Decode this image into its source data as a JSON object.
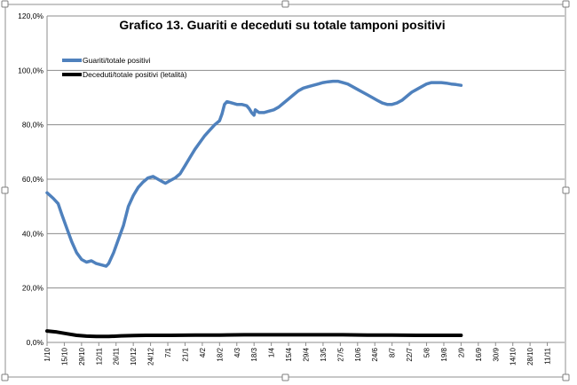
{
  "chart_data": {
    "type": "line",
    "title": "Grafico 13. Guariti e deceduti su totale tamponi positivi",
    "xlabel": "",
    "ylabel": "",
    "ylim": [
      0,
      120
    ],
    "y_ticks": [
      "0,0%",
      "20,0%",
      "40,0%",
      "60,0%",
      "80,0%",
      "100,0%",
      "120,0%"
    ],
    "grid": true,
    "legend_position": "top-left",
    "x_tick_labels": [
      "1/10",
      "15/10",
      "29/10",
      "12/11",
      "26/11",
      "10/12",
      "24/12",
      "7/1",
      "21/1",
      "4/2",
      "18/2",
      "4/3",
      "18/3",
      "1/4",
      "15/4",
      "29/4",
      "13/5",
      "27/5",
      "10/6",
      "24/6",
      "8/7",
      "22/7",
      "5/8",
      "19/8",
      "2/9",
      "16/9",
      "30/9",
      "14/10",
      "28/10",
      "11/11"
    ],
    "n_days": 420,
    "series": [
      {
        "name": "Guariti/totale positivi",
        "color": "#4f81bd",
        "points": [
          [
            0,
            55
          ],
          [
            5,
            53
          ],
          [
            9,
            51
          ],
          [
            12,
            47
          ],
          [
            16,
            42
          ],
          [
            20,
            37
          ],
          [
            24,
            33
          ],
          [
            28,
            30.5
          ],
          [
            32,
            29.5
          ],
          [
            36,
            30
          ],
          [
            40,
            29
          ],
          [
            44,
            28.5
          ],
          [
            48,
            28
          ],
          [
            50,
            29
          ],
          [
            54,
            33
          ],
          [
            58,
            38
          ],
          [
            62,
            43
          ],
          [
            66,
            50
          ],
          [
            70,
            54
          ],
          [
            74,
            57
          ],
          [
            78,
            59
          ],
          [
            82,
            60.5
          ],
          [
            86,
            61
          ],
          [
            90,
            60
          ],
          [
            94,
            59
          ],
          [
            96,
            58.5
          ],
          [
            100,
            59.5
          ],
          [
            104,
            60.5
          ],
          [
            108,
            62
          ],
          [
            112,
            65
          ],
          [
            116,
            68
          ],
          [
            120,
            71
          ],
          [
            124,
            73.5
          ],
          [
            128,
            76
          ],
          [
            132,
            78
          ],
          [
            136,
            80
          ],
          [
            140,
            81.5
          ],
          [
            142,
            84
          ],
          [
            144,
            87.5
          ],
          [
            146,
            88.5
          ],
          [
            150,
            88
          ],
          [
            154,
            87.5
          ],
          [
            158,
            87.5
          ],
          [
            162,
            87
          ],
          [
            164,
            86
          ],
          [
            166,
            84.5
          ],
          [
            168,
            83.5
          ],
          [
            169,
            85.5
          ],
          [
            172,
            84.5
          ],
          [
            176,
            84.5
          ],
          [
            180,
            85
          ],
          [
            184,
            85.5
          ],
          [
            188,
            86.5
          ],
          [
            192,
            88
          ],
          [
            196,
            89.5
          ],
          [
            200,
            91
          ],
          [
            204,
            92.5
          ],
          [
            208,
            93.5
          ],
          [
            212,
            94
          ],
          [
            216,
            94.5
          ],
          [
            220,
            95
          ],
          [
            224,
            95.5
          ],
          [
            228,
            95.8
          ],
          [
            232,
            96
          ],
          [
            236,
            96
          ],
          [
            240,
            95.5
          ],
          [
            244,
            95
          ],
          [
            248,
            94
          ],
          [
            252,
            93
          ],
          [
            256,
            92
          ],
          [
            260,
            91
          ],
          [
            264,
            90
          ],
          [
            268,
            89
          ],
          [
            272,
            88
          ],
          [
            276,
            87.5
          ],
          [
            280,
            87.5
          ],
          [
            284,
            88
          ],
          [
            288,
            89
          ],
          [
            292,
            90.5
          ],
          [
            296,
            92
          ],
          [
            300,
            93
          ],
          [
            304,
            94
          ],
          [
            308,
            95
          ],
          [
            312,
            95.5
          ],
          [
            316,
            95.5
          ],
          [
            320,
            95.5
          ],
          [
            324,
            95.3
          ],
          [
            328,
            95
          ],
          [
            332,
            94.8
          ],
          [
            336,
            94.5
          ]
        ]
      },
      {
        "name": "Deceduti/totale positivi (letalità)",
        "color": "#000000",
        "points": [
          [
            0,
            4.2
          ],
          [
            8,
            3.8
          ],
          [
            16,
            3.2
          ],
          [
            24,
            2.6
          ],
          [
            32,
            2.3
          ],
          [
            40,
            2.2
          ],
          [
            50,
            2.2
          ],
          [
            60,
            2.4
          ],
          [
            70,
            2.5
          ],
          [
            80,
            2.6
          ],
          [
            90,
            2.6
          ],
          [
            100,
            2.6
          ],
          [
            120,
            2.7
          ],
          [
            140,
            2.7
          ],
          [
            160,
            2.8
          ],
          [
            180,
            2.8
          ],
          [
            200,
            2.8
          ],
          [
            220,
            2.8
          ],
          [
            240,
            2.8
          ],
          [
            260,
            2.7
          ],
          [
            280,
            2.7
          ],
          [
            300,
            2.6
          ],
          [
            320,
            2.6
          ],
          [
            336,
            2.6
          ]
        ]
      }
    ]
  }
}
